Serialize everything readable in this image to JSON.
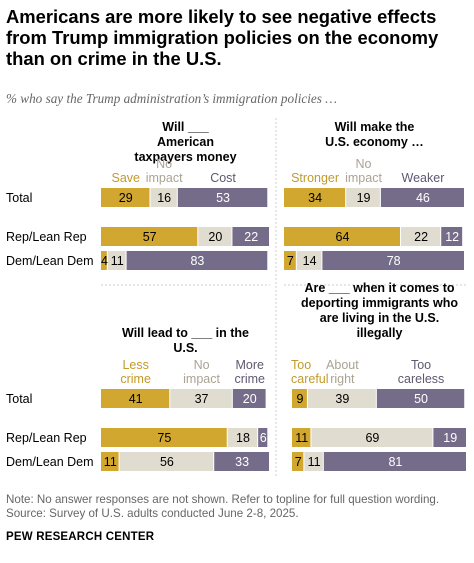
{
  "title": "Americans are more likely to see negative effects from Trump immigration policies on the economy than on crime in the U.S.",
  "subtitle": "% who say the Trump administration’s immigration policies …",
  "colors": {
    "gold": "#d1a72f",
    "beige": "#e0dcd0",
    "purple": "#756c8a",
    "gold_text": "#c29a2a",
    "beige_text": "#aaa394",
    "purple_text": "#5f586f"
  },
  "row_labels": [
    "Total",
    "Rep/Lean Rep",
    "Dem/Lean Dem"
  ],
  "chart_data": [
    {
      "type": "bar",
      "stacked": true,
      "orientation": "horizontal",
      "title": "Will ___ American taxpayers money",
      "categories": [
        "Total",
        "Rep/Lean Rep",
        "Dem/Lean Dem"
      ],
      "series": [
        {
          "name": "Save",
          "values": [
            29,
            57,
            4
          ]
        },
        {
          "name": "No impact",
          "values": [
            16,
            20,
            11
          ]
        },
        {
          "name": "Cost",
          "values": [
            53,
            22,
            83
          ]
        }
      ]
    },
    {
      "type": "bar",
      "stacked": true,
      "orientation": "horizontal",
      "title": "Will make the U.S. economy …",
      "categories": [
        "Total",
        "Rep/Lean Rep",
        "Dem/Lean Dem"
      ],
      "series": [
        {
          "name": "Stronger",
          "values": [
            34,
            64,
            7
          ]
        },
        {
          "name": "No impact",
          "values": [
            19,
            22,
            14
          ]
        },
        {
          "name": "Weaker",
          "values": [
            46,
            12,
            78
          ]
        }
      ]
    },
    {
      "type": "bar",
      "stacked": true,
      "orientation": "horizontal",
      "title": "Will lead to ___ in the U.S.",
      "categories": [
        "Total",
        "Rep/Lean Rep",
        "Dem/Lean Dem"
      ],
      "series": [
        {
          "name": "Less crime",
          "values": [
            41,
            75,
            11
          ]
        },
        {
          "name": "No impact",
          "values": [
            37,
            18,
            56
          ]
        },
        {
          "name": "More crime",
          "values": [
            20,
            6,
            33
          ]
        }
      ]
    },
    {
      "type": "bar",
      "stacked": true,
      "orientation": "horizontal",
      "title": "Are ___ when it comes to deporting immigrants who are living in the U.S. illegally",
      "categories": [
        "Total",
        "Rep/Lean Rep",
        "Dem/Lean Dem"
      ],
      "series": [
        {
          "name": "Too careful",
          "values": [
            9,
            11,
            7
          ]
        },
        {
          "name": "About right",
          "values": [
            39,
            69,
            11
          ]
        },
        {
          "name": "Too careless",
          "values": [
            50,
            19,
            81
          ]
        }
      ]
    }
  ],
  "footer": {
    "note": "Note: No answer responses are not shown. Refer to topline for full question wording.",
    "source": "Source: Survey of U.S. adults conducted June 2-8, 2025.",
    "brand": "PEW RESEARCH CENTER"
  }
}
